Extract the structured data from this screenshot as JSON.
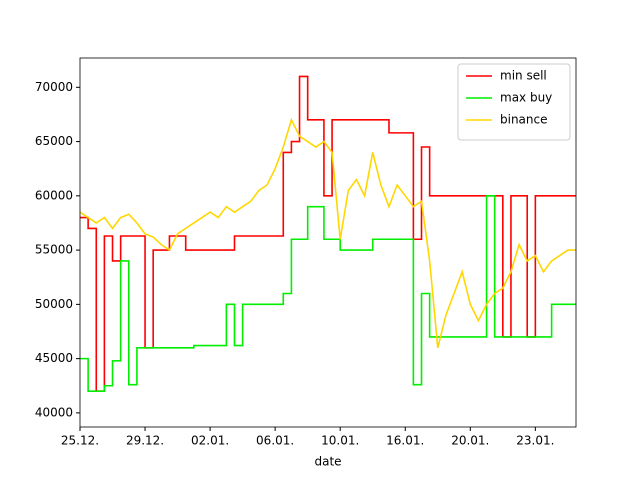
{
  "chart_data": {
    "type": "line",
    "xlabel": "date",
    "x": [
      0,
      0.5,
      1,
      1.5,
      2,
      2.5,
      3,
      3.5,
      4,
      4.5,
      5,
      5.5,
      6,
      6.5,
      7,
      7.5,
      8,
      8.5,
      9,
      9.5,
      10,
      10.5,
      11,
      11.5,
      12,
      12.5,
      13,
      13.5,
      14,
      14.5,
      15,
      15.5,
      16,
      16.5,
      17,
      17.5,
      18,
      18.5,
      19,
      19.5,
      20,
      20.5,
      21,
      21.5,
      22,
      22.5,
      23,
      23.5,
      24,
      24.5,
      25,
      25.5,
      26,
      26.5,
      27,
      27.5,
      28,
      28.5,
      29,
      29.5,
      30,
      30.5
    ],
    "series": [
      {
        "name": "min sell",
        "color": "#ff0000",
        "drawstyle": "steps-post",
        "values": [
          58000,
          57000,
          42000,
          56300,
          54000,
          56300,
          56300,
          56300,
          46000,
          55000,
          55000,
          56300,
          56300,
          55000,
          55000,
          55000,
          55000,
          55000,
          55000,
          56300,
          56300,
          56300,
          56300,
          56300,
          56300,
          64000,
          65000,
          71000,
          67000,
          67000,
          60000,
          67000,
          67000,
          67000,
          67000,
          67000,
          67000,
          67000,
          65800,
          65800,
          65800,
          56000,
          64500,
          60000,
          60000,
          60000,
          60000,
          60000,
          60000,
          60000,
          60000,
          60000,
          47000,
          60000,
          60000,
          47000,
          60000,
          60000,
          60000,
          60000,
          60000,
          60000
        ]
      },
      {
        "name": "max buy",
        "color": "#00ee00",
        "drawstyle": "steps-post",
        "values": [
          45000,
          42000,
          42000,
          42500,
          44800,
          54000,
          42600,
          46000,
          46000,
          46000,
          46000,
          46000,
          46000,
          46000,
          46200,
          46200,
          46200,
          46200,
          50000,
          46200,
          50000,
          50000,
          50000,
          50000,
          50000,
          51000,
          56000,
          56000,
          59000,
          59000,
          56000,
          56000,
          55000,
          55000,
          55000,
          55000,
          56000,
          56000,
          56000,
          56000,
          56000,
          42600,
          51000,
          47000,
          47000,
          47000,
          47000,
          47000,
          47000,
          47000,
          60000,
          47000,
          47000,
          47000,
          47000,
          47000,
          47000,
          47000,
          50000,
          50000,
          50000,
          50000
        ]
      },
      {
        "name": "binance",
        "color": "#ffd700",
        "drawstyle": "linear",
        "values": [
          58500,
          58000,
          57500,
          58000,
          57000,
          58000,
          58300,
          57500,
          56500,
          56200,
          55500,
          55000,
          56500,
          57000,
          57500,
          58000,
          58500,
          58000,
          59000,
          58500,
          59000,
          59500,
          60500,
          61000,
          62500,
          64500,
          67000,
          65500,
          65000,
          64500,
          65000,
          64000,
          56000,
          60500,
          61500,
          60000,
          64000,
          61000,
          59000,
          61000,
          60000,
          59000,
          59500,
          54000,
          46000,
          49000,
          51000,
          53000,
          50000,
          48500,
          50000,
          51000,
          51500,
          53000,
          55500,
          54000,
          54500,
          53000,
          54000,
          54500,
          55000,
          55000
        ]
      }
    ],
    "xlim": [
      0,
      30.5
    ],
    "xticks": [
      {
        "value": 0,
        "label": "25.12."
      },
      {
        "value": 4,
        "label": "29.12."
      },
      {
        "value": 8,
        "label": "02.01."
      },
      {
        "value": 12,
        "label": "06.01."
      },
      {
        "value": 16,
        "label": "10.01."
      },
      {
        "value": 20,
        "label": "16.01."
      },
      {
        "value": 24,
        "label": "20.01."
      },
      {
        "value": 28,
        "label": "23.01."
      }
    ],
    "ylim": [
      38700,
      72700
    ],
    "yticks": [
      40000,
      45000,
      50000,
      55000,
      60000,
      65000,
      70000
    ],
    "legend": "upper right"
  }
}
